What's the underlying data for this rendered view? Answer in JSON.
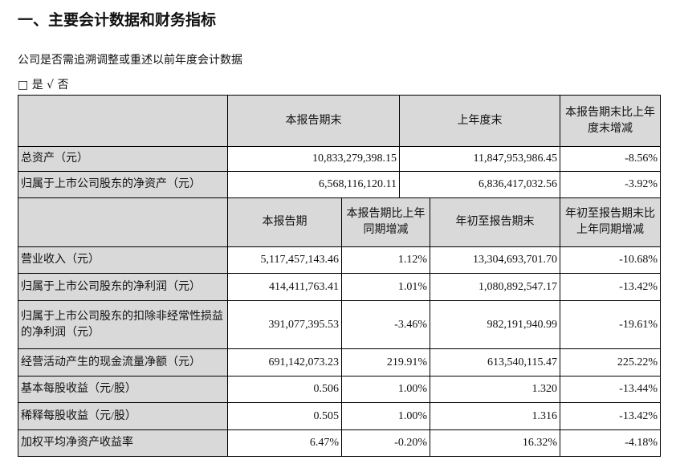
{
  "title": "一、主要会计数据和财务指标",
  "question": "公司是否需追溯调整或重述以前年度会计数据",
  "options": {
    "checkbox_icon": "□",
    "yes": "是",
    "check_icon": "√",
    "no": "否"
  },
  "table1": {
    "headers": [
      "",
      "本报告期末",
      "上年度末",
      "本报告期末比上年度末增减"
    ],
    "rows": [
      {
        "label": "总资产（元）",
        "values": [
          "10,833,279,398.15",
          "11,847,953,986.45",
          "-8.56%"
        ]
      },
      {
        "label": "归属于上市公司股东的净资产（元）",
        "values": [
          "6,568,116,120.11",
          "6,836,417,032.56",
          "-3.92%"
        ]
      }
    ]
  },
  "table2": {
    "headers": [
      "",
      "本报告期",
      "本报告期比上年同期增减",
      "年初至报告期末",
      "年初至报告期末比上年同期增减"
    ],
    "rows": [
      {
        "label": "营业收入（元）",
        "values": [
          "5,117,457,143.46",
          "1.12%",
          "13,304,693,701.70",
          "-10.68%"
        ]
      },
      {
        "label": "归属于上市公司股东的净利润（元）",
        "values": [
          "414,411,763.41",
          "1.01%",
          "1,080,892,547.17",
          "-13.42%"
        ]
      },
      {
        "label": "归属于上市公司股东的扣除非经常性损益的净利润（元）",
        "values": [
          "391,077,395.53",
          "-3.46%",
          "982,191,940.99",
          "-19.61%"
        ]
      },
      {
        "label": "经营活动产生的现金流量净额（元）",
        "values": [
          "691,142,073.23",
          "219.91%",
          "613,540,115.47",
          "225.22%"
        ]
      },
      {
        "label": "基本每股收益（元/股）",
        "values": [
          "0.506",
          "1.00%",
          "1.320",
          "-13.44%"
        ]
      },
      {
        "label": "稀释每股收益（元/股）",
        "values": [
          "0.505",
          "1.00%",
          "1.316",
          "-13.42%"
        ]
      },
      {
        "label": "加权平均净资产收益率",
        "values": [
          "6.47%",
          "-0.20%",
          "16.32%",
          "-4.18%"
        ]
      }
    ]
  }
}
